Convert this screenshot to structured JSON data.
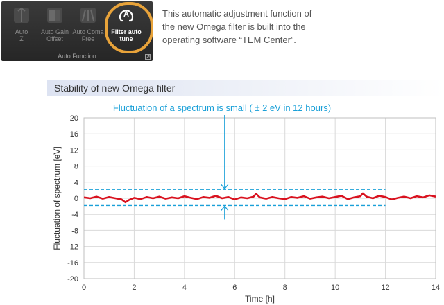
{
  "toolbar": {
    "items": [
      {
        "label_line1": "Auto",
        "label_line2": "Z",
        "icon": "auto-z-icon"
      },
      {
        "label_line1": "Auto Gain",
        "label_line2": "Offset",
        "icon": "auto-gain-offset-icon"
      },
      {
        "label_line1": "Auto Coma",
        "label_line2": "Free",
        "icon": "auto-coma-free-icon"
      },
      {
        "label_line1": "Filter auto",
        "label_line2": "tune",
        "icon": "filter-auto-tune-icon"
      }
    ],
    "group_label": "Auto Function",
    "highlight_color": "#e8a33a"
  },
  "description": {
    "line1": "This automatic adjustment function of",
    "line2": "the new Omega filter is built into the",
    "line3": "operating software “TEM Center”."
  },
  "section_title": "Stability of new Omega filter",
  "chart_data": {
    "type": "line",
    "title": "",
    "annotation": "Fluctuation of a spectrum is small ( ± 2 eV in 12 hours)",
    "xlabel": "Time [h]",
    "ylabel": "Fluctuation of spectrum [eV]",
    "xlim": [
      0,
      14
    ],
    "ylim": [
      -20,
      20
    ],
    "xticks": [
      "0",
      "2",
      "4",
      "6",
      "8",
      "10",
      "12",
      "14"
    ],
    "yticks": [
      "20",
      "16",
      "12",
      "8",
      "4",
      "0",
      "-4",
      "-8",
      "-12",
      "-16",
      "-20"
    ],
    "bounds": {
      "upper": 2.2,
      "lower": -1.8,
      "x_end": 12,
      "arrow_x": 5.6
    },
    "series": [
      {
        "name": "Fluctuation",
        "color": "#d9121f",
        "x": [
          0,
          0.25,
          0.5,
          0.75,
          1.0,
          1.25,
          1.5,
          1.65,
          1.8,
          2.0,
          2.25,
          2.5,
          2.75,
          3.0,
          3.25,
          3.5,
          3.75,
          4.0,
          4.25,
          4.5,
          4.75,
          5.0,
          5.25,
          5.5,
          5.75,
          6.0,
          6.25,
          6.5,
          6.75,
          6.85,
          7.0,
          7.25,
          7.5,
          7.75,
          8.0,
          8.25,
          8.5,
          8.75,
          9.0,
          9.25,
          9.5,
          9.75,
          10.0,
          10.25,
          10.5,
          10.75,
          11.0,
          11.1,
          11.25,
          11.5,
          11.75,
          12.0,
          12.25,
          12.5,
          12.75,
          13.0,
          13.25,
          13.5,
          13.75,
          14.0
        ],
        "values": [
          0.2,
          0.0,
          0.4,
          -0.1,
          0.3,
          0.0,
          -0.3,
          -1.0,
          -0.4,
          0.1,
          -0.2,
          0.3,
          0.0,
          0.4,
          -0.1,
          0.2,
          0.0,
          0.5,
          0.1,
          -0.2,
          0.3,
          0.1,
          0.6,
          0.0,
          0.3,
          -0.3,
          0.2,
          0.0,
          0.4,
          1.1,
          0.2,
          -0.1,
          0.3,
          0.0,
          -0.2,
          0.3,
          0.1,
          0.5,
          -0.1,
          0.2,
          0.4,
          0.0,
          0.3,
          0.6,
          -0.2,
          0.2,
          0.5,
          1.2,
          0.4,
          0.0,
          0.6,
          0.3,
          -0.3,
          0.1,
          0.4,
          0.0,
          0.5,
          0.2,
          0.7,
          0.4
        ]
      }
    ],
    "colors": {
      "bound": "#1aa0d8",
      "grid": "#d9d9d9"
    }
  }
}
